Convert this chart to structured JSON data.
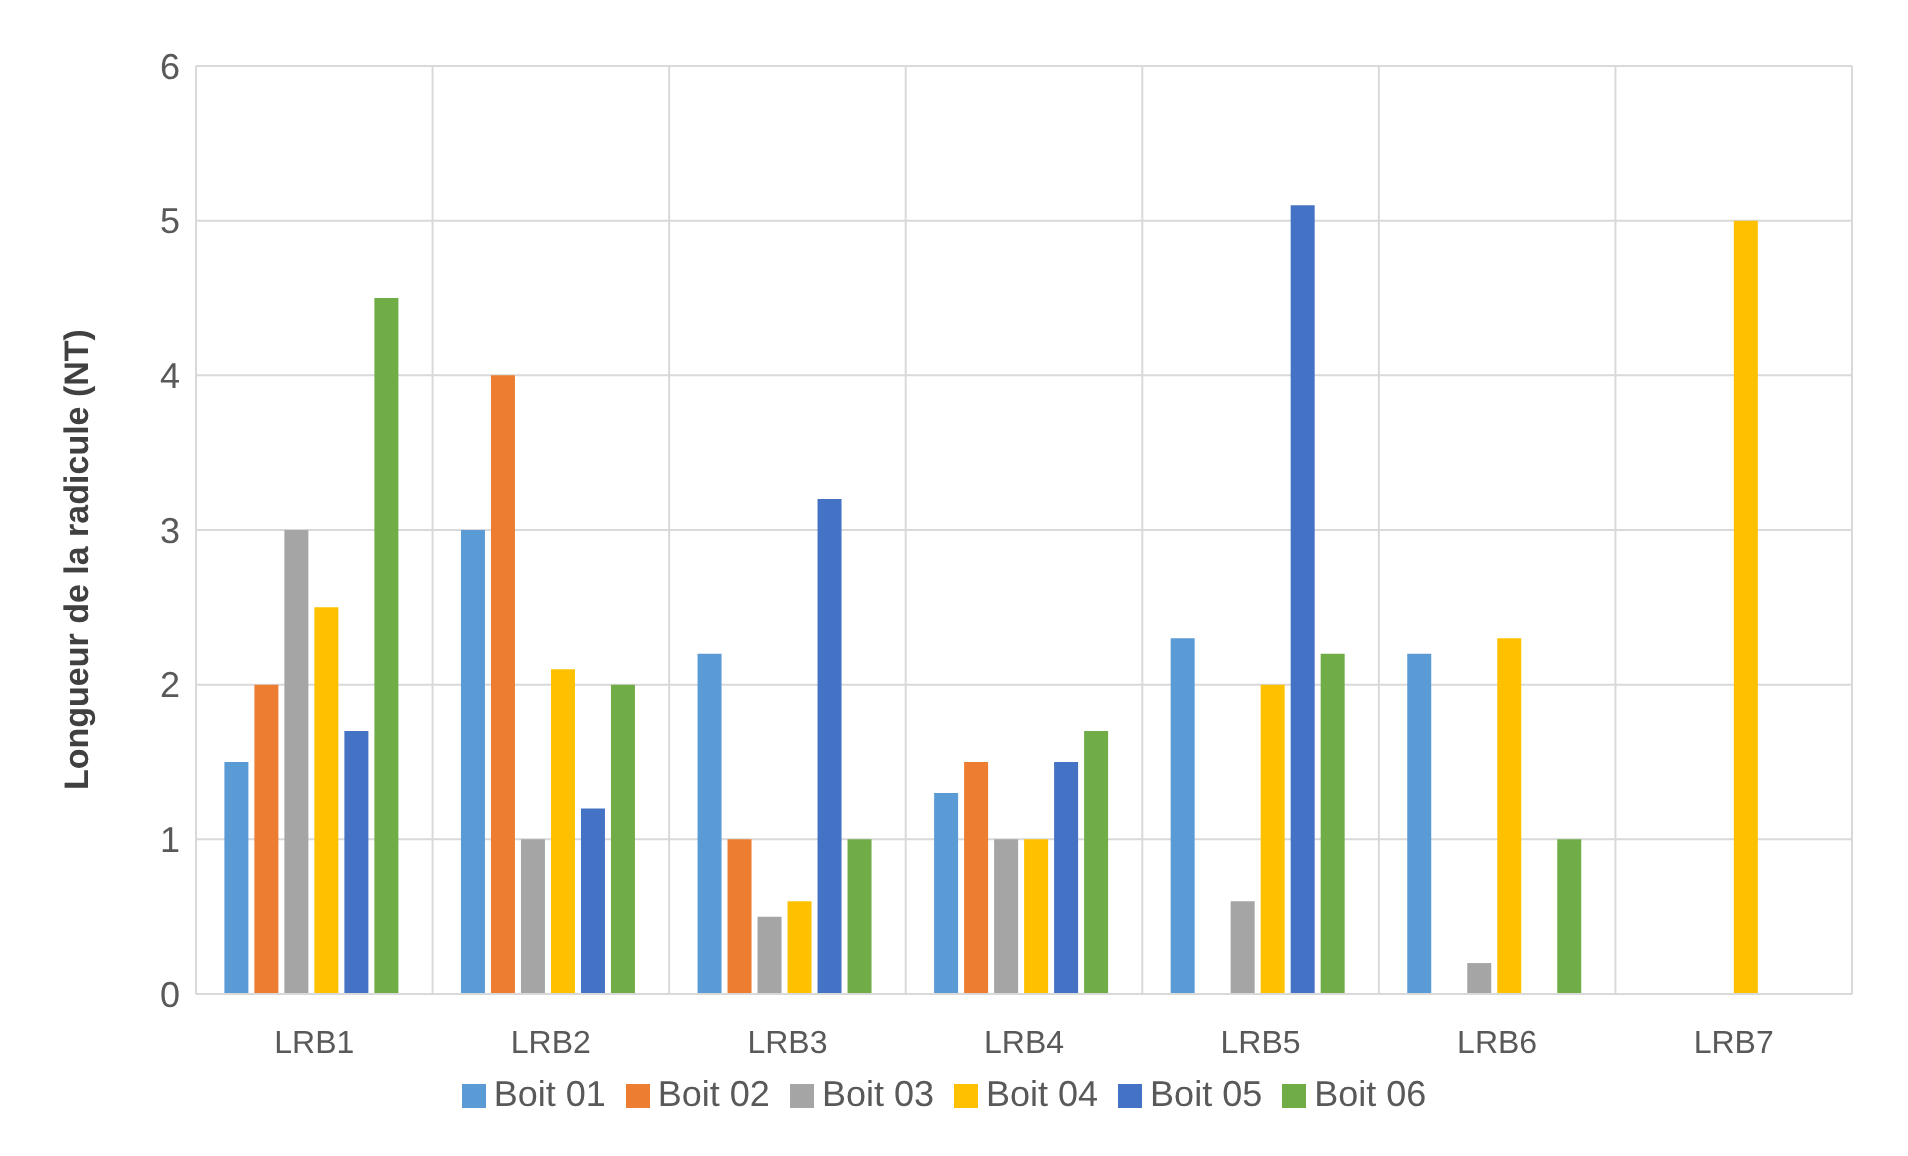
{
  "chart_data": {
    "type": "bar",
    "ylabel": "Longueur de la radicule (NT)",
    "categories": [
      "LRB1",
      "LRB2",
      "LRB3",
      "LRB4",
      "LRB5",
      "LRB6",
      "LRB7"
    ],
    "series": [
      {
        "name": "Boit 01",
        "color": "#5b9bd5",
        "values": [
          1.5,
          3.0,
          2.2,
          1.3,
          2.3,
          2.2,
          null
        ]
      },
      {
        "name": "Boit 02",
        "color": "#ed7d31",
        "values": [
          2.0,
          4.0,
          1.0,
          1.5,
          null,
          null,
          null
        ]
      },
      {
        "name": "Boit 03",
        "color": "#a5a5a5",
        "values": [
          3.0,
          1.0,
          0.5,
          1.0,
          0.6,
          0.2,
          null
        ]
      },
      {
        "name": "Boit 04",
        "color": "#ffc000",
        "values": [
          2.5,
          2.1,
          0.6,
          1.0,
          2.0,
          2.3,
          5.0
        ]
      },
      {
        "name": "Boit 05",
        "color": "#4472c4",
        "values": [
          1.7,
          1.2,
          3.2,
          1.5,
          5.1,
          null,
          null
        ]
      },
      {
        "name": "Boit 06",
        "color": "#70ad47",
        "values": [
          4.5,
          2.0,
          1.0,
          1.7,
          2.2,
          1.0,
          null
        ]
      }
    ],
    "ylim": [
      0,
      6
    ],
    "yticks": [
      0,
      1,
      2,
      3,
      4,
      5,
      6
    ],
    "grid": true,
    "legend": "bottom"
  }
}
